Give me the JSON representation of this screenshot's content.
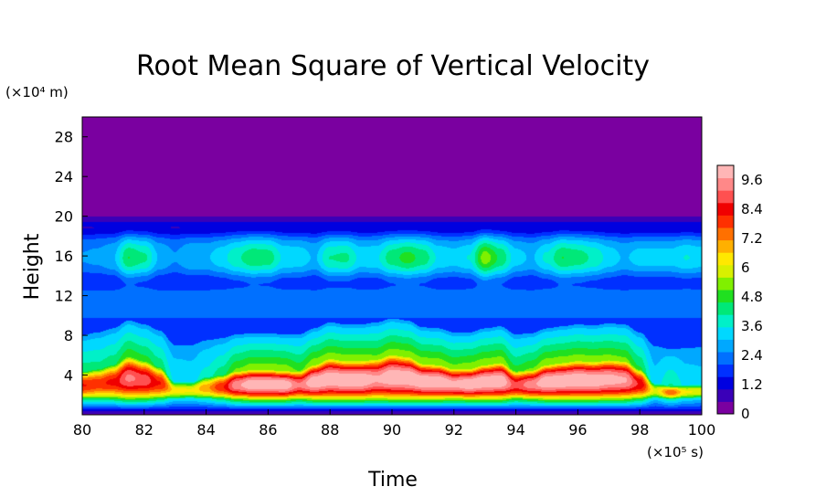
{
  "chart_data": {
    "type": "heatmap",
    "title": "Root Mean Square of Vertical Velocity",
    "xlabel": "Time",
    "ylabel": "Height",
    "x_unit": "(×10⁵ s)",
    "y_unit": "(×10⁴ m)",
    "xlim": [
      80,
      100
    ],
    "ylim": [
      0,
      30
    ],
    "x_ticks": [
      "80",
      "82",
      "84",
      "86",
      "88",
      "90",
      "92",
      "94",
      "96",
      "98",
      "100"
    ],
    "y_ticks": [
      "4",
      "8",
      "12",
      "16",
      "20",
      "24",
      "28"
    ],
    "colorbar": {
      "range": [
        0,
        10.2
      ],
      "ticks": [
        "0",
        "1.2",
        "2.4",
        "3.6",
        "4.8",
        "6",
        "7.2",
        "8.4",
        "9.6"
      ],
      "colors": [
        "#7a00a0",
        "#3a00b8",
        "#0000e0",
        "#0030ff",
        "#0070ff",
        "#00a8ff",
        "#00d8ff",
        "#00f0c8",
        "#00e878",
        "#20e020",
        "#80f000",
        "#d8f000",
        "#ffe800",
        "#ffb000",
        "#ff7000",
        "#ff3000",
        "#f00000",
        "#ff5050",
        "#ff8888",
        "#ffb6b6"
      ]
    },
    "time_points": [
      80.0,
      80.5,
      81.0,
      81.5,
      82.0,
      82.5,
      83.0,
      83.5,
      84.0,
      84.5,
      85.0,
      85.5,
      86.0,
      86.5,
      87.0,
      87.5,
      88.0,
      88.5,
      89.0,
      89.5,
      90.0,
      90.5,
      91.0,
      91.5,
      92.0,
      92.5,
      93.0,
      93.5,
      94.0,
      94.5,
      95.0,
      95.5,
      96.0,
      96.5,
      97.0,
      97.5,
      98.0,
      98.5,
      99.0,
      99.5,
      100.0
    ],
    "low_layer_peak": [
      8.2,
      8.0,
      8.3,
      9.3,
      9.0,
      8.2,
      6.4,
      6.2,
      7.0,
      8.1,
      9.6,
      10.2,
      10.2,
      10.2,
      9.3,
      10.2,
      10.2,
      10.2,
      10.2,
      9.8,
      10.2,
      10.2,
      10.2,
      10.2,
      9.9,
      10.2,
      10.2,
      10.2,
      8.9,
      9.5,
      10.2,
      10.2,
      10.2,
      10.2,
      10.0,
      9.8,
      8.6,
      6.0,
      7.6,
      6.2,
      6.0
    ],
    "low_layer_top": [
      6.5,
      6.8,
      7.2,
      8.0,
      7.6,
      7.0,
      5.5,
      5.5,
      6.0,
      6.2,
      6.6,
      6.7,
      6.7,
      6.6,
      6.6,
      7.2,
      7.8,
      7.6,
      7.6,
      7.8,
      8.2,
      8.0,
      7.3,
      7.2,
      6.8,
      6.8,
      7.2,
      7.4,
      6.6,
      6.7,
      7.2,
      7.4,
      7.6,
      7.5,
      7.7,
      7.6,
      6.8,
      5.4,
      5.1,
      5.2,
      5.3
    ],
    "upper_layer_peak": [
      2.6,
      2.7,
      3.0,
      4.6,
      4.2,
      3.0,
      2.6,
      3.0,
      3.0,
      3.4,
      4.0,
      4.5,
      4.4,
      3.5,
      3.4,
      3.0,
      4.1,
      4.2,
      3.4,
      3.5,
      4.4,
      4.8,
      4.4,
      3.5,
      3.3,
      3.6,
      5.4,
      4.5,
      3.3,
      3.0,
      3.7,
      4.6,
      4.4,
      4.0,
      3.4,
      3.0,
      3.3,
      3.3,
      3.3,
      3.6,
      3.4
    ],
    "jet_top": 20,
    "upper_value": 0
  }
}
